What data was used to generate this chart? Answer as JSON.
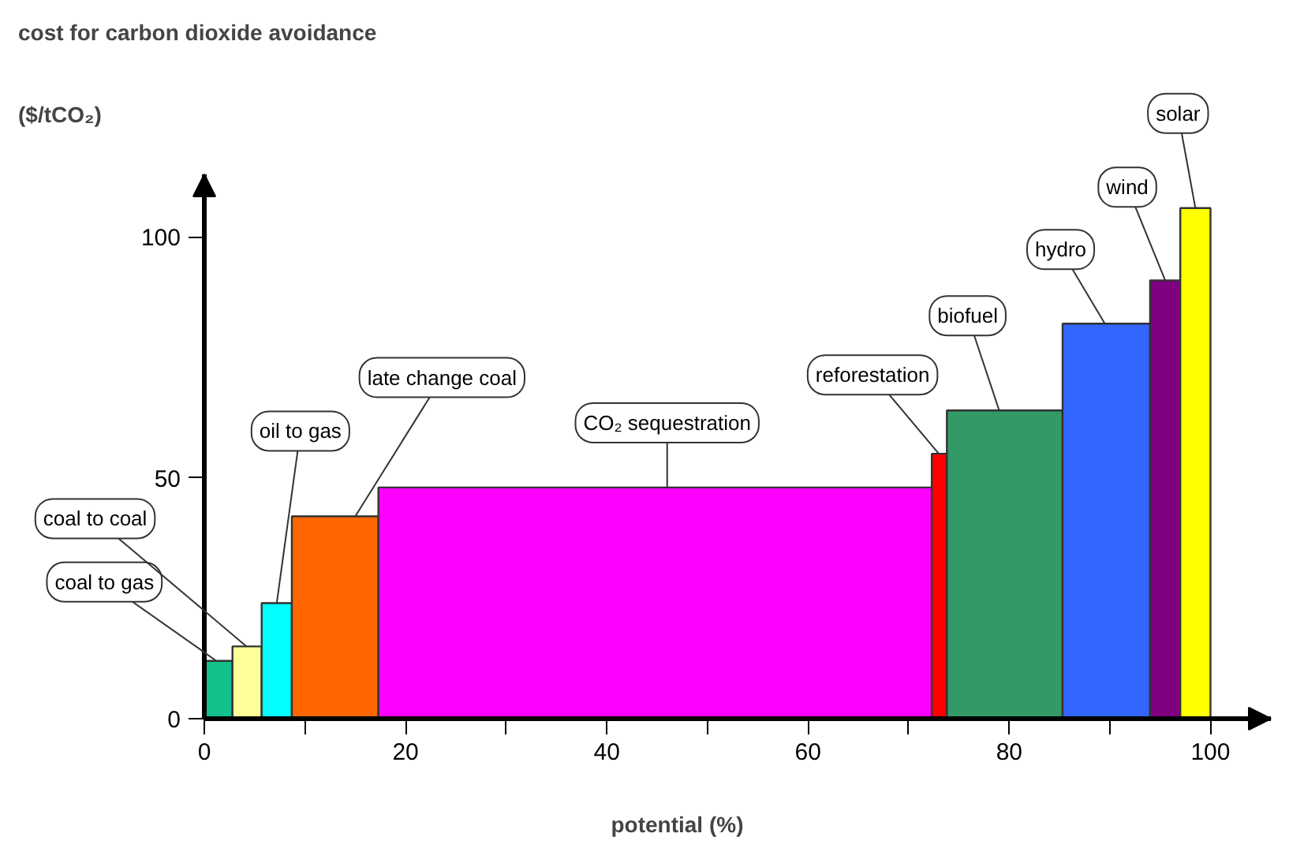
{
  "chart_data": {
    "type": "histogram",
    "title": "cost for carbon dioxide avoidance",
    "ylabel": "($/tCO₂)",
    "xlabel": "potential (%)",
    "bins": [
      0,
      2.8,
      5.7,
      8.7,
      17.3,
      72.3,
      73.8,
      85.3,
      94,
      97,
      100
    ],
    "values": [
      12,
      15,
      24,
      42,
      48,
      55,
      64,
      82,
      91,
      106
    ],
    "colors": [
      "#12c08c",
      "#ffff99",
      "#00ffff",
      "#ff6600",
      "#ff00ff",
      "#ff0000",
      "#339966",
      "#3366ff",
      "#800080",
      "#ffff00"
    ],
    "xlim": [
      0,
      106
    ],
    "ylim": [
      0,
      113
    ],
    "xticks": [
      0,
      {
        "value": 10,
        "label": null
      },
      20,
      {
        "value": 30,
        "label": null
      },
      40,
      {
        "value": 50,
        "label": null
      },
      60,
      {
        "value": 70,
        "label": null
      },
      80,
      {
        "value": 90,
        "label": null
      },
      100
    ],
    "yticks": [
      0,
      50,
      100
    ],
    "grid": false,
    "annotations": [
      {
        "text": "coal to gas",
        "x": 1.2,
        "y": 12
      },
      {
        "text": "coal to coal",
        "x": 4.2,
        "y": 15
      },
      {
        "text": "oil to gas",
        "x": 7.2,
        "y": 24
      },
      {
        "text": "late change coal",
        "x": 15,
        "y": 42
      },
      {
        "text": "CO₂ sequestration",
        "x": 46,
        "y": 48
      },
      {
        "text": "reforestation",
        "x": 73,
        "y": 55
      },
      {
        "text": "biofuel",
        "x": 79,
        "y": 64
      },
      {
        "text": "hydro",
        "x": 89.5,
        "y": 82
      },
      {
        "text": "wind",
        "x": 95.5,
        "y": 91
      },
      {
        "text": "solar",
        "x": 98.5,
        "y": 106
      }
    ]
  }
}
